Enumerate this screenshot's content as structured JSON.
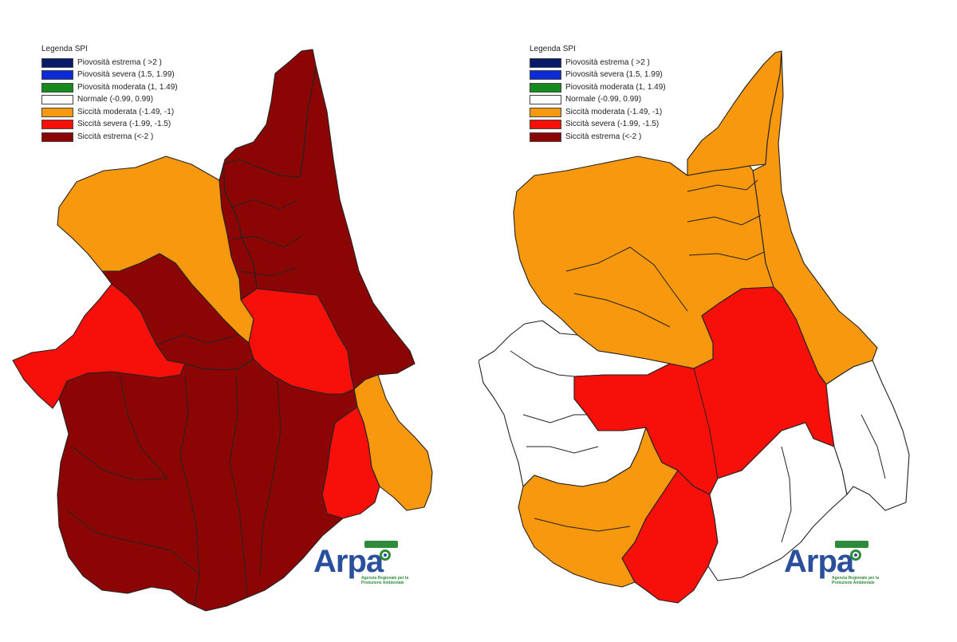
{
  "legend": {
    "title": "Legenda SPI",
    "items": [
      {
        "label": "Piovosità estrema ( >2 )",
        "color": "#0a1a6b"
      },
      {
        "label": "Piovosità severa (1.5, 1.99)",
        "color": "#0a2bd6"
      },
      {
        "label": "Piovosità moderata (1, 1.49)",
        "color": "#148a1f"
      },
      {
        "label": "Normale (-0.99, 0.99)",
        "color": "#ffffff"
      },
      {
        "label": "Siccità moderata (-1.49, -1)",
        "color": "#f7980e"
      },
      {
        "label": "Siccità severa (-1.99, -1.5)",
        "color": "#f70f0a"
      },
      {
        "label": "Siccità estrema (<-2 )",
        "color": "#8c0505"
      }
    ]
  },
  "logo": {
    "brand": "Arpa",
    "subtitle": "Agenzia Regionale per la Protezione Ambientale"
  },
  "maps": [
    {
      "id": "left",
      "regions": [
        {
          "name": "north-valley",
          "class": "extreme"
        },
        {
          "name": "northwest-basin",
          "class": "moderate"
        },
        {
          "name": "northeast-strip",
          "class": "extreme"
        },
        {
          "name": "central-west",
          "class": "extreme"
        },
        {
          "name": "west-lobe",
          "class": "severe"
        },
        {
          "name": "central-east",
          "class": "severe"
        },
        {
          "name": "east-strip",
          "class": "moderate"
        },
        {
          "name": "southeast-small",
          "class": "severe"
        },
        {
          "name": "south-large",
          "class": "extreme"
        }
      ]
    },
    {
      "id": "right",
      "regions": [
        {
          "name": "north-valley",
          "class": "moderate"
        },
        {
          "name": "northwest-basin",
          "class": "moderate"
        },
        {
          "name": "northeast-strip",
          "class": "moderate"
        },
        {
          "name": "west-lobe",
          "class": "normal"
        },
        {
          "name": "central-red",
          "class": "severe"
        },
        {
          "name": "south-red",
          "class": "severe"
        },
        {
          "name": "southwest-orange",
          "class": "moderate"
        },
        {
          "name": "east-white",
          "class": "normal"
        },
        {
          "name": "southeast-white",
          "class": "normal"
        }
      ]
    }
  ],
  "class_colors": {
    "extreme": "#8c0505",
    "severe": "#f70f0a",
    "moderate": "#f7980e",
    "normal": "#ffffff"
  }
}
